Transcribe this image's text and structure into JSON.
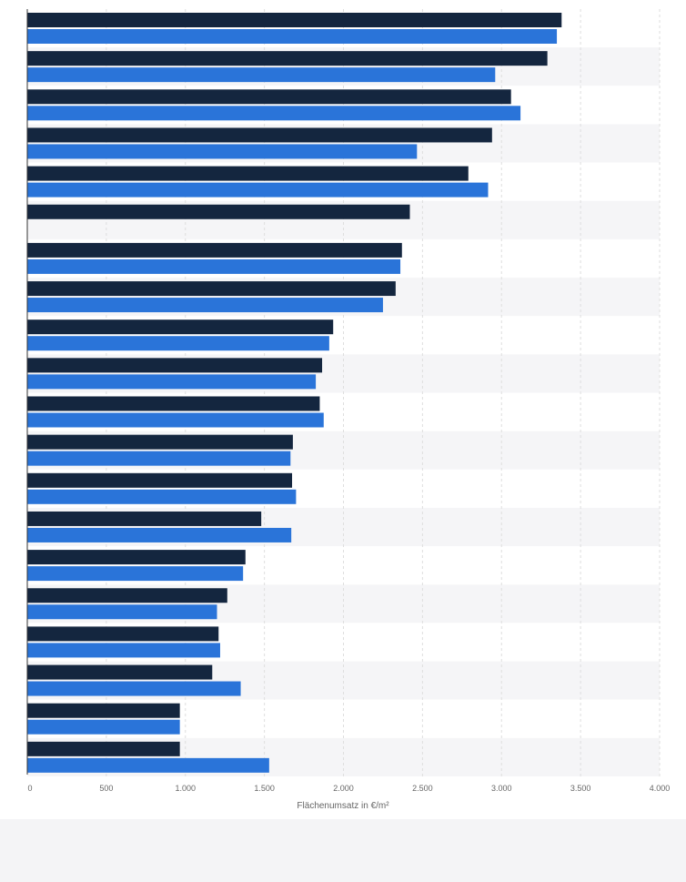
{
  "chart_data": {
    "type": "bar",
    "orientation": "horizontal",
    "xlabel": "Flächenumsatz in €/m²",
    "ylabel": "",
    "xlim": [
      0,
      4000
    ],
    "x_ticks": [
      0,
      500,
      1000,
      1500,
      2000,
      2500,
      3000,
      3500,
      4000
    ],
    "x_tick_labels": [
      "0",
      "500",
      "1.000",
      "1.500",
      "2.000",
      "2.500",
      "3.000",
      "3.500",
      "4.000"
    ],
    "grid": true,
    "legend": "none",
    "colors": {
      "series_1": "#14263f",
      "series_2": "#2a74d9"
    },
    "categories": [
      "",
      "",
      "",
      "",
      "",
      "",
      "",
      "",
      "",
      "",
      "",
      "",
      "",
      "",
      "",
      "",
      "",
      "",
      "",
      ""
    ],
    "series": [
      {
        "values": [
          3380,
          3290,
          3060,
          2940,
          2790,
          2420,
          2370,
          2330,
          1935,
          1865,
          1850,
          1680,
          1675,
          1480,
          1380,
          1265,
          1210,
          1170,
          965,
          965
        ]
      },
      {
        "values": [
          3350,
          2960,
          3120,
          2465,
          2915,
          null,
          2360,
          2250,
          1910,
          1825,
          1875,
          1665,
          1700,
          1670,
          1365,
          1200,
          1220,
          1350,
          965,
          1530
        ]
      }
    ]
  }
}
